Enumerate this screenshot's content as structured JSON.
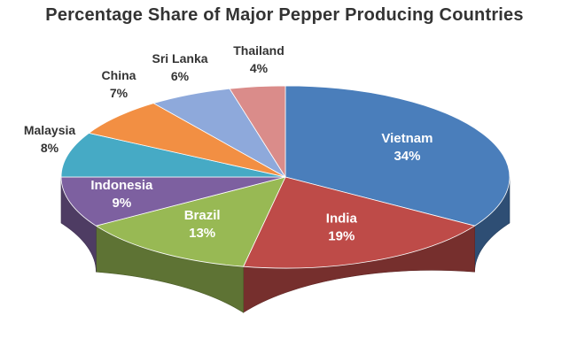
{
  "chart_data": {
    "type": "pie",
    "title": "Percentage Share of Major Pepper Producing Countries",
    "slices": [
      {
        "label": "Vietnam",
        "value": 34,
        "display": "34%",
        "color": "#4A7EBB"
      },
      {
        "label": "India",
        "value": 19,
        "display": "19%",
        "color": "#BE4B48"
      },
      {
        "label": "Brazil",
        "value": 13,
        "display": "13%",
        "color": "#98B954"
      },
      {
        "label": "Indonesia",
        "value": 9,
        "display": "9%",
        "color": "#7D60A0"
      },
      {
        "label": "Malaysia",
        "value": 8,
        "display": "8%",
        "color": "#46AAC5"
      },
      {
        "label": "China",
        "value": 7,
        "display": "7%",
        "color": "#F28F43"
      },
      {
        "label": "Sri Lanka",
        "value": 6,
        "display": "6%",
        "color": "#8EA9DB"
      },
      {
        "label": "Thailand",
        "value": 4,
        "display": "4%",
        "color": "#DA8C8A"
      }
    ],
    "legend": "none",
    "style": "3d"
  }
}
